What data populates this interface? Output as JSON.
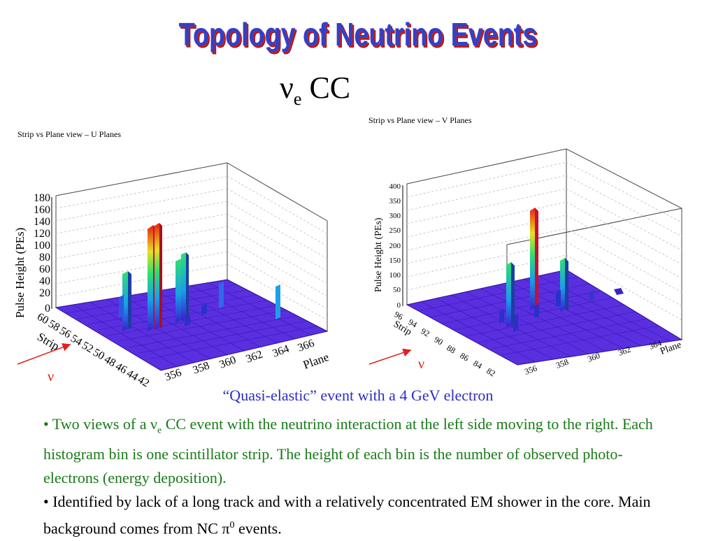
{
  "title": "Topology of Neutrino Events",
  "subtitle": {
    "main": "ν",
    "sub": "e",
    "rest": " CC"
  },
  "panels": [
    {
      "title": "Strip vs Plane view – U Planes",
      "z_axis_label": "Pulse Height (PEs)",
      "z_ticks": [
        "180",
        "160",
        "140",
        "120",
        "100",
        "80",
        "60",
        "40",
        "20",
        "0"
      ],
      "strip_label": "Strip",
      "strip_ticks": [
        "60",
        "58",
        "56",
        "54",
        "52",
        "50",
        "48",
        "46",
        "44",
        "42"
      ],
      "plane_label": "Plane",
      "plane_ticks": [
        "356",
        "358",
        "360",
        "362",
        "364",
        "366"
      ],
      "neutrino_label": "ν"
    },
    {
      "title": "Strip vs Plane view – V Planes",
      "z_axis_label": "Pulse Height (PEs)",
      "z_ticks": [
        "400",
        "350",
        "300",
        "250",
        "200",
        "150",
        "100",
        "50",
        "0"
      ],
      "strip_label": "Strip",
      "strip_ticks": [
        "96",
        "94",
        "92",
        "90",
        "88",
        "86",
        "84",
        "82"
      ],
      "plane_label": "Plane",
      "plane_ticks": [
        "356",
        "358",
        "360",
        "362",
        "364"
      ],
      "neutrino_label": "ν"
    }
  ],
  "caption": "“Quasi-elastic” event with a 4 GeV electron",
  "bullet1": {
    "prefix": "• Two views of a ",
    "nu": "ν",
    "sub": "e",
    "rest": " CC event with the neutrino interaction at the left side moving to the right. Each histogram bin is one scintillator strip. The height of each bin is the number of observed photo-electrons (energy deposition)."
  },
  "bullet2": {
    "text": "• Identified by lack of a long track and with a relatively concentrated EM shower in the core. Main background comes from NC ",
    "pi": "π",
    "sup": "0",
    "rest": " events."
  },
  "colors": {
    "title": "#3340c8",
    "title_shadow": "#c81e1e",
    "caption": "#2d2dc8",
    "bullet1": "#1a7a1a",
    "floor": "#5a2fe0",
    "arrow": "#e02020"
  }
}
